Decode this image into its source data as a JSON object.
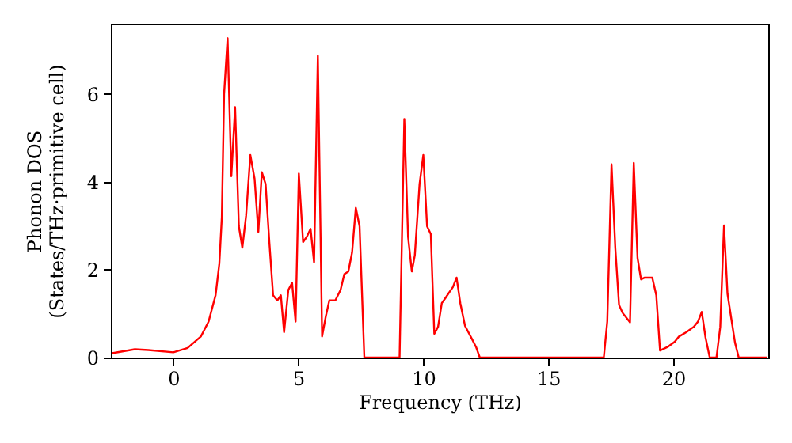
{
  "chart_data": {
    "type": "line",
    "xlabel": "Frequency (THz)",
    "ylabel": "Phonon DOS\n(States/THz·primitive cell)",
    "xlim": [
      -2.5,
      23.8
    ],
    "ylim": [
      0,
      7.6
    ],
    "xticks": [
      0,
      5,
      10,
      15,
      20
    ],
    "yticks": [
      0,
      2,
      4,
      6
    ],
    "grid": false,
    "marker": "none",
    "line_style": "solid",
    "series": [
      {
        "color": "#ff0000",
        "x": [
          -2.45,
          -1.54,
          -1.0,
          0,
          0.57,
          1.1,
          1.41,
          1.69,
          1.84,
          1.94,
          2.03,
          2.17,
          2.32,
          2.47,
          2.62,
          2.76,
          2.91,
          3.08,
          3.25,
          3.4,
          3.54,
          3.69,
          3.84,
          3.99,
          4.16,
          4.3,
          4.43,
          4.6,
          4.75,
          4.89,
          5.02,
          5.19,
          5.34,
          5.49,
          5.63,
          5.78,
          5.95,
          6.1,
          6.24,
          6.48,
          6.69,
          6.84,
          7.0,
          7.15,
          7.3,
          7.45,
          7.64,
          9.05,
          9.24,
          9.39,
          9.54,
          9.66,
          9.85,
          10.0,
          10.15,
          10.3,
          10.44,
          10.59,
          10.74,
          10.89,
          11.03,
          11.18,
          11.33,
          11.48,
          11.67,
          11.94,
          12.11,
          12.26,
          17.22,
          17.36,
          17.53,
          17.68,
          17.83,
          17.97,
          18.27,
          18.42,
          18.57,
          18.71,
          18.86,
          19.16,
          19.32,
          19.47,
          19.77,
          20.06,
          20.23,
          20.53,
          20.82,
          20.99,
          21.14,
          21.29,
          21.46,
          21.73,
          21.88,
          22.03,
          22.17,
          22.34,
          22.47,
          22.62,
          23.76
        ],
        "values": [
          0.1,
          0.19,
          0.17,
          0.12,
          0.22,
          0.48,
          0.82,
          1.42,
          2.14,
          3.2,
          6.0,
          7.27,
          4.13,
          5.7,
          2.99,
          2.5,
          3.23,
          4.61,
          4.07,
          2.86,
          4.22,
          3.95,
          2.63,
          1.42,
          1.3,
          1.42,
          0.58,
          1.54,
          1.7,
          0.82,
          4.19,
          2.63,
          2.75,
          2.93,
          2.17,
          6.87,
          0.48,
          0.94,
          1.3,
          1.3,
          1.54,
          1.9,
          1.96,
          2.39,
          3.41,
          2.99,
          0,
          0,
          5.43,
          2.75,
          1.96,
          2.33,
          3.95,
          4.61,
          2.99,
          2.81,
          0.54,
          0.7,
          1.24,
          1.36,
          1.48,
          1.6,
          1.82,
          1.24,
          0.72,
          0.43,
          0.24,
          0,
          0,
          0.82,
          4.4,
          2.5,
          1.2,
          1.02,
          0.8,
          4.43,
          2.27,
          1.78,
          1.82,
          1.82,
          1.42,
          0.16,
          0.24,
          0.36,
          0.48,
          0.58,
          0.7,
          0.82,
          1.04,
          0.46,
          0,
          0,
          0.7,
          3.01,
          1.45,
          0.82,
          0.34,
          0,
          0
        ]
      }
    ]
  }
}
